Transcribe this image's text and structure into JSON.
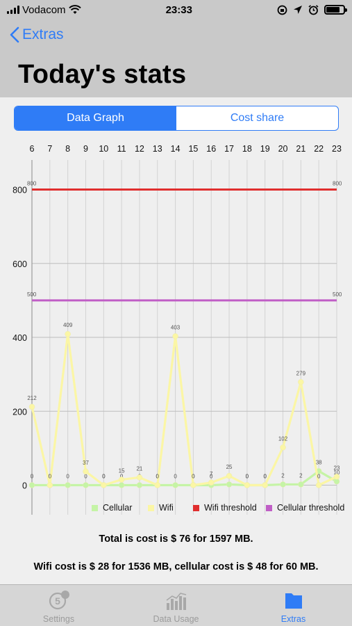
{
  "status_bar": {
    "carrier": "Vodacom",
    "time": "23:33"
  },
  "nav": {
    "back_label": "Extras"
  },
  "page": {
    "title": "Today's stats"
  },
  "segmented": {
    "active": "Data Graph",
    "inactive": "Cost share"
  },
  "chart_data": {
    "type": "line",
    "categories": [
      "6",
      "7",
      "8",
      "9",
      "10",
      "11",
      "12",
      "13",
      "14",
      "15",
      "16",
      "17",
      "18",
      "19",
      "20",
      "21",
      "22",
      "23"
    ],
    "yticks": [
      0,
      200,
      400,
      600,
      800
    ],
    "ylim": [
      -80,
      880
    ],
    "series": [
      {
        "name": "Cellular",
        "color": "#c5f4a6",
        "values": [
          0,
          0,
          0,
          0,
          0,
          0,
          0,
          0,
          0,
          0,
          0,
          2,
          0,
          0,
          2,
          2,
          38,
          10
        ]
      },
      {
        "name": "Wifi",
        "color": "#fbf6a5",
        "values": [
          212,
          0,
          409,
          37,
          0,
          15,
          21,
          0,
          403,
          0,
          7,
          25,
          0,
          0,
          102,
          279,
          0,
          23
        ]
      },
      {
        "name": "Wifi threshold",
        "color": "#e02e2e",
        "values": [
          800,
          800,
          800,
          800,
          800,
          800,
          800,
          800,
          800,
          800,
          800,
          800,
          800,
          800,
          800,
          800,
          800,
          800
        ]
      },
      {
        "name": "Cellular threshold",
        "color": "#c05ec6",
        "values": [
          500,
          500,
          500,
          500,
          500,
          500,
          500,
          500,
          500,
          500,
          500,
          500,
          500,
          500,
          500,
          500,
          500,
          500
        ]
      }
    ],
    "threshold_labels": {
      "wifi": "800",
      "cellular": "500"
    }
  },
  "summary": {
    "total": "Total is cost is $ 76 for 1597 MB.",
    "split": "Wifi cost is $ 28 for 1536 MB, cellular cost is $ 48 for 60 MB."
  },
  "tabs": [
    {
      "label": "Settings",
      "icon": "settings-badge-icon",
      "badge": "5"
    },
    {
      "label": "Data Usage",
      "icon": "bar-chart-icon"
    },
    {
      "label": "Extras",
      "icon": "folder-icon"
    }
  ]
}
